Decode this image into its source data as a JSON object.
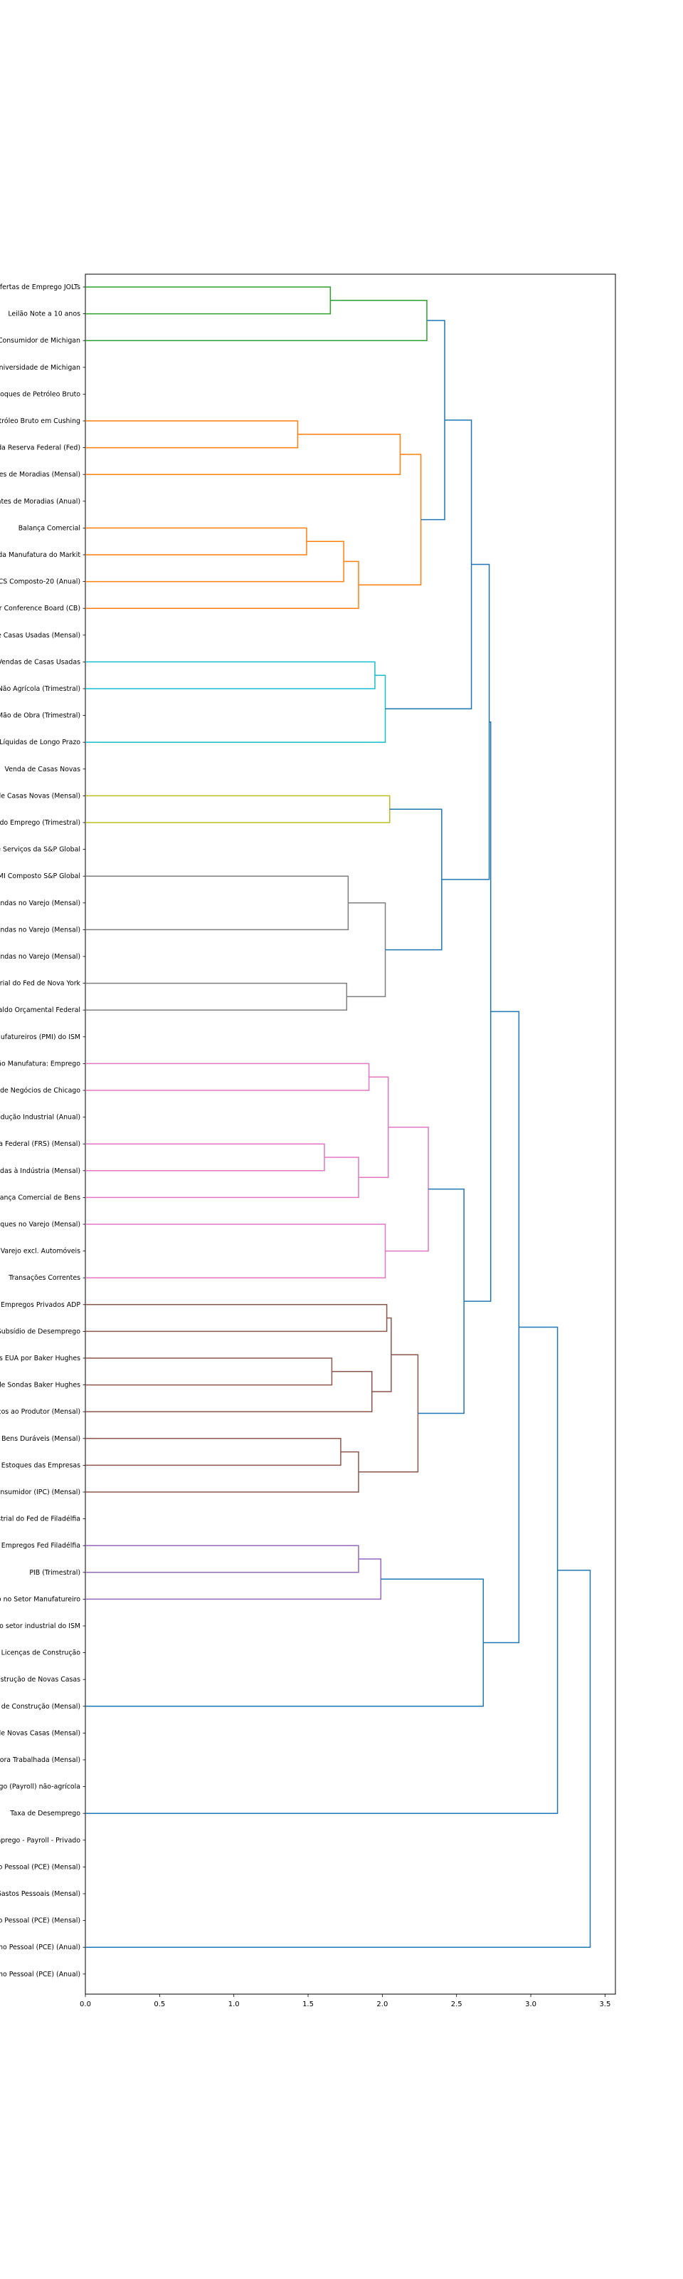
{
  "chart_data": {
    "type": "dendrogram",
    "orientation": "horizontal",
    "xlim": [
      0,
      3.57
    ],
    "xticks": [
      "0.0",
      "0.5",
      "1.0",
      "1.5",
      "2.0",
      "2.5",
      "3.0",
      "3.5"
    ],
    "colors": {
      "green": "#2ca02c",
      "orange": "#ff7f0e",
      "cyan": "#17becf",
      "olive": "#bcbd22",
      "gray": "#7f7f7f",
      "pink": "#e377c2",
      "brown": "#8c564b",
      "purple": "#9467bd",
      "above": "#1f77b4"
    },
    "leaves": [
      "Ofertas de Emprego JOLTs",
      "Leilão Note a 10 anos",
      "Consumidor de Michigan",
      "Universidade de Michigan",
      "stoques de Petróleo Bruto",
      "etróleo Bruto em Cushing",
      "da Reserva Federal (Fed)",
      "tes de Moradias (Mensal)",
      "ntes de Moradias (Anual)",
      "Balança Comercial",
      "da Manufatura do Markit",
      "/CS Composto-20 (Anual)",
      "or Conference Board (CB)",
      "de Casas Usadas (Mensal)",
      "Vendas de Casas Usadas",
      "Não Agrícola (Trimestral)",
      "Mão de Obra (Trimestral)",
      "Líquidas de Longo Prazo",
      "Venda de Casas Novas",
      "de Casas Novas (Mensal)",
      "do Emprego (Trimestral)",
      "e Serviços da S&P Global",
      "PMI Composto S&P Global",
      "endas no Varejo (Mensal)",
      "endas no Varejo (Mensal)",
      "endas no Varejo (Mensal)",
      "strial do Fed de Nova York",
      "Saldo Orçamental Federal",
      "nufatureiros (PMI) do ISM",
      "ão Manufatura: Emprego",
      "de Negócios de Chicago",
      "odução Industrial (Anual)",
      "va Federal (FRS) (Mensal)",
      "ndas à Indústria (Mensal)",
      "alança Comercial de Bens",
      "oques no Varejo (Mensal)",
      "Varejo excl. Automóveis",
      "Transações Correntes",
      "Empregos Privados ADP",
      "Subsídio de Desemprego",
      "os EUA por Baker Hughes",
      "de Sondas Baker Hughes",
      "ços ao Produtor (Mensal)",
      "e Bens Duráveis (Mensal)",
      "Estoques das Empresas",
      "onsumidor (IPC) (Mensal)",
      "strial do Fed de Filadélfia",
      "Empregos Fed Filadélfia",
      "PIB (Trimestral)",
      "o no Setor Manufatureiro",
      "no setor industrial do ISM",
      "Licenças de Construção",
      "nstrução de Novas Casas",
      "s de Construção (Mensal)",
      "de Novas Casas (Mensal)",
      "ora Trabalhada (Mensal)",
      "rego (Payroll) não-agrícola",
      "Taxa de Desemprego",
      "mprego - Payroll - Privado",
      "o Pessoal (PCE) (Mensal)",
      "Gastos Pessoais (Mensal)",
      "o Pessoal (PCE) (Mensal)",
      "umo Pessoal (PCE) (Anual)",
      "mo Pessoal (PCE) (Anual)"
    ],
    "links": [
      {
        "a": 0,
        "b": 1,
        "h": 1.65,
        "c": "green"
      },
      {
        "a": 0.5,
        "b": 2,
        "h": 2.3,
        "c": "green"
      },
      {
        "a": 5,
        "b": 6,
        "h": 1.43,
        "c": "orange"
      },
      {
        "a": 5.5,
        "b": 7,
        "h": 2.12,
        "c": "orange"
      },
      {
        "a": 9,
        "b": 10,
        "h": 1.49,
        "c": "orange"
      },
      {
        "a": 9.5,
        "b": 11,
        "h": 1.74,
        "c": "orange"
      },
      {
        "a": 10.25,
        "b": 12,
        "h": 1.84,
        "c": "orange"
      },
      {
        "a": 6.25,
        "b": 11.125,
        "h": 2.26,
        "c": "orange"
      },
      {
        "a": 14,
        "b": 15,
        "h": 1.95,
        "c": "cyan"
      },
      {
        "a": 14.5,
        "b": 17,
        "h": 2.02,
        "c": "cyan"
      },
      {
        "a": 19,
        "b": 20,
        "h": 2.05,
        "c": "olive"
      },
      {
        "a": 22,
        "b": 24,
        "h": 1.77,
        "c": "gray"
      },
      {
        "a": 26,
        "b": 27,
        "h": 1.76,
        "c": "gray"
      },
      {
        "a": 23,
        "b": 26.5,
        "h": 2.02,
        "c": "gray"
      },
      {
        "a": 29,
        "b": 30,
        "h": 1.91,
        "c": "pink"
      },
      {
        "a": 32,
        "b": 33,
        "h": 1.61,
        "c": "pink"
      },
      {
        "a": 32.5,
        "b": 34,
        "h": 1.84,
        "c": "pink"
      },
      {
        "a": 29.5,
        "b": 33.25,
        "h": 2.04,
        "c": "pink"
      },
      {
        "a": 35,
        "b": 37,
        "h": 2.02,
        "c": "pink"
      },
      {
        "a": 31.375,
        "b": 36,
        "h": 2.31,
        "c": "pink"
      },
      {
        "a": 38,
        "b": 39,
        "h": 2.03,
        "c": "brown"
      },
      {
        "a": 40,
        "b": 41,
        "h": 1.66,
        "c": "brown"
      },
      {
        "a": 40.5,
        "b": 42,
        "h": 1.93,
        "c": "brown"
      },
      {
        "a": 38.5,
        "b": 41.25,
        "h": 2.06,
        "c": "brown"
      },
      {
        "a": 43,
        "b": 44,
        "h": 1.72,
        "c": "brown"
      },
      {
        "a": 43.5,
        "b": 45,
        "h": 1.84,
        "c": "brown"
      },
      {
        "a": 39.875,
        "b": 44.25,
        "h": 2.24,
        "c": "brown"
      },
      {
        "a": 47,
        "b": 48,
        "h": 1.84,
        "c": "purple"
      },
      {
        "a": 47.5,
        "b": 49,
        "h": 1.99,
        "c": "purple"
      },
      {
        "a": 1.25,
        "b": 8.6875,
        "h": 2.42,
        "c": "above"
      },
      {
        "a": 4.96875,
        "b": 15.75,
        "h": 2.6,
        "c": "above"
      },
      {
        "a": 19.5,
        "b": 24.75,
        "h": 2.4,
        "c": "above"
      },
      {
        "a": 10.359,
        "b": 22.125,
        "h": 2.72,
        "c": "above"
      },
      {
        "a": 33.6875,
        "b": 42.0625,
        "h": 2.55,
        "c": "above"
      },
      {
        "a": 16.242,
        "b": 37.875,
        "h": 2.73,
        "c": "above"
      },
      {
        "a": 48.25,
        "b": 53,
        "h": 2.68,
        "c": "above"
      },
      {
        "a": 27.058,
        "b": 50.625,
        "h": 2.92,
        "c": "above"
      },
      {
        "a": 38.842,
        "b": 57,
        "h": 3.18,
        "c": "above"
      },
      {
        "a": 47.921,
        "b": 62,
        "h": 3.4,
        "c": "above"
      }
    ]
  }
}
